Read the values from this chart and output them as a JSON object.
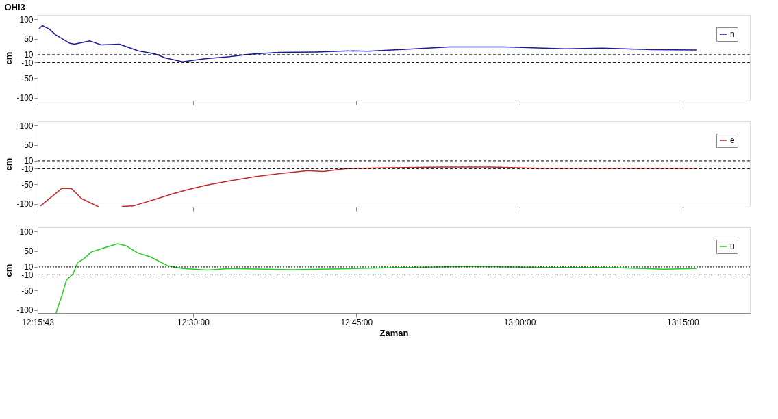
{
  "chart_data": [
    {
      "type": "line",
      "title": "OHI3",
      "ylabel": "cm",
      "legend": "top right",
      "grid": false,
      "tick_labels": "y",
      "xlim": [
        12.2619,
        13.353
      ],
      "ylim": [
        -107,
        111
      ],
      "xticks": [
        {
          "value": 12.2619,
          "label": null
        },
        {
          "value": 12.5,
          "label": null
        },
        {
          "value": 12.75,
          "label": null
        },
        {
          "value": 13.0,
          "label": null
        },
        {
          "value": 13.25,
          "label": null
        }
      ],
      "yticks": [
        -100,
        -50,
        -10,
        10,
        50,
        100
      ],
      "ref_lines": [
        {
          "axis": "y",
          "value": 10,
          "color": "#000000",
          "line_style": "dashed"
        },
        {
          "axis": "y",
          "value": -10,
          "color": "#000000",
          "line_style": "dashed"
        }
      ],
      "series": [
        {
          "name": "n",
          "color": "#1a1a9a",
          "x": [
            12.264,
            12.269,
            12.28,
            12.289,
            12.299,
            12.31,
            12.318,
            12.342,
            12.359,
            12.387,
            12.416,
            12.442,
            12.457,
            12.484,
            12.518,
            12.556,
            12.586,
            12.631,
            12.688,
            12.745,
            12.768,
            12.825,
            12.893,
            12.976,
            13.07,
            13.127,
            13.203,
            13.271
          ],
          "values": [
            76,
            84,
            75,
            61,
            51,
            40,
            37,
            45,
            35,
            37,
            20,
            12,
            2,
            -8,
            0,
            5,
            11,
            16,
            17,
            20,
            19,
            24,
            30,
            30,
            25,
            27,
            23,
            22
          ]
        }
      ]
    },
    {
      "type": "line",
      "ylabel": "cm",
      "legend": "top right",
      "grid": false,
      "tick_labels": "y",
      "xlim": [
        12.2619,
        13.353
      ],
      "ylim": [
        -107,
        111
      ],
      "xticks": [
        {
          "value": 12.2619,
          "label": null
        },
        {
          "value": 12.5,
          "label": null
        },
        {
          "value": 12.75,
          "label": null
        },
        {
          "value": 13.0,
          "label": null
        },
        {
          "value": 13.25,
          "label": null
        }
      ],
      "yticks": [
        -100,
        -50,
        -10,
        10,
        50,
        100
      ],
      "ref_lines": [
        {
          "axis": "y",
          "value": 10,
          "color": "#000000",
          "line_style": "dashed"
        },
        {
          "axis": "y",
          "value": -10,
          "color": "#000000",
          "line_style": "dashed"
        }
      ],
      "series": [
        {
          "name": "e",
          "color": "#c0282a",
          "x": [
            12.266,
            12.299,
            12.314,
            12.329,
            12.355,
            12.37,
            12.391,
            12.408,
            12.438,
            12.469,
            12.491,
            12.518,
            12.556,
            12.597,
            12.631,
            12.676,
            12.699,
            12.733,
            12.786,
            12.881,
            12.957,
            13.032,
            13.146,
            13.271
          ],
          "values": [
            -105,
            -60,
            -61,
            -86,
            -107,
            null,
            -106,
            -105,
            -90,
            -74,
            -64,
            -53,
            -41,
            -30,
            -23,
            -15,
            -17,
            -10,
            -8,
            -6,
            -6,
            -9,
            -9,
            -9
          ]
        }
      ]
    },
    {
      "type": "line",
      "ylabel": "cm",
      "xlabel": "Zaman",
      "legend": "top right",
      "grid": false,
      "xlim": [
        12.2619,
        13.353
      ],
      "ylim": [
        -107,
        111
      ],
      "xticks": [
        {
          "value": 12.2619,
          "label": "12:15:43"
        },
        {
          "value": 12.5,
          "label": "12:30:00"
        },
        {
          "value": 12.75,
          "label": "12:45:00"
        },
        {
          "value": 13.0,
          "label": "13:00:00"
        },
        {
          "value": 13.25,
          "label": "13:15:00"
        }
      ],
      "yticks": [
        -100,
        -50,
        -10,
        10,
        50,
        100
      ],
      "ref_lines": [
        {
          "axis": "y",
          "value": 10,
          "color": "#000000",
          "line_style": "dotted"
        },
        {
          "axis": "y",
          "value": -10,
          "color": "#000000",
          "line_style": "dashed"
        }
      ],
      "series": [
        {
          "name": "u",
          "color": "#22cc22",
          "x": [
            12.29,
            12.299,
            12.306,
            12.316,
            12.323,
            12.332,
            12.344,
            12.359,
            12.374,
            12.385,
            12.397,
            12.416,
            12.434,
            12.461,
            12.484,
            12.522,
            12.556,
            12.65,
            12.726,
            12.768,
            12.919,
            13.032,
            13.146,
            13.221,
            13.271
          ],
          "values": [
            -107,
            -63,
            -23,
            -8,
            21,
            30,
            48,
            56,
            64,
            69,
            64,
            45,
            36,
            13,
            6,
            2,
            6,
            3,
            5,
            7,
            11,
            9,
            8,
            4,
            6
          ]
        }
      ]
    }
  ]
}
